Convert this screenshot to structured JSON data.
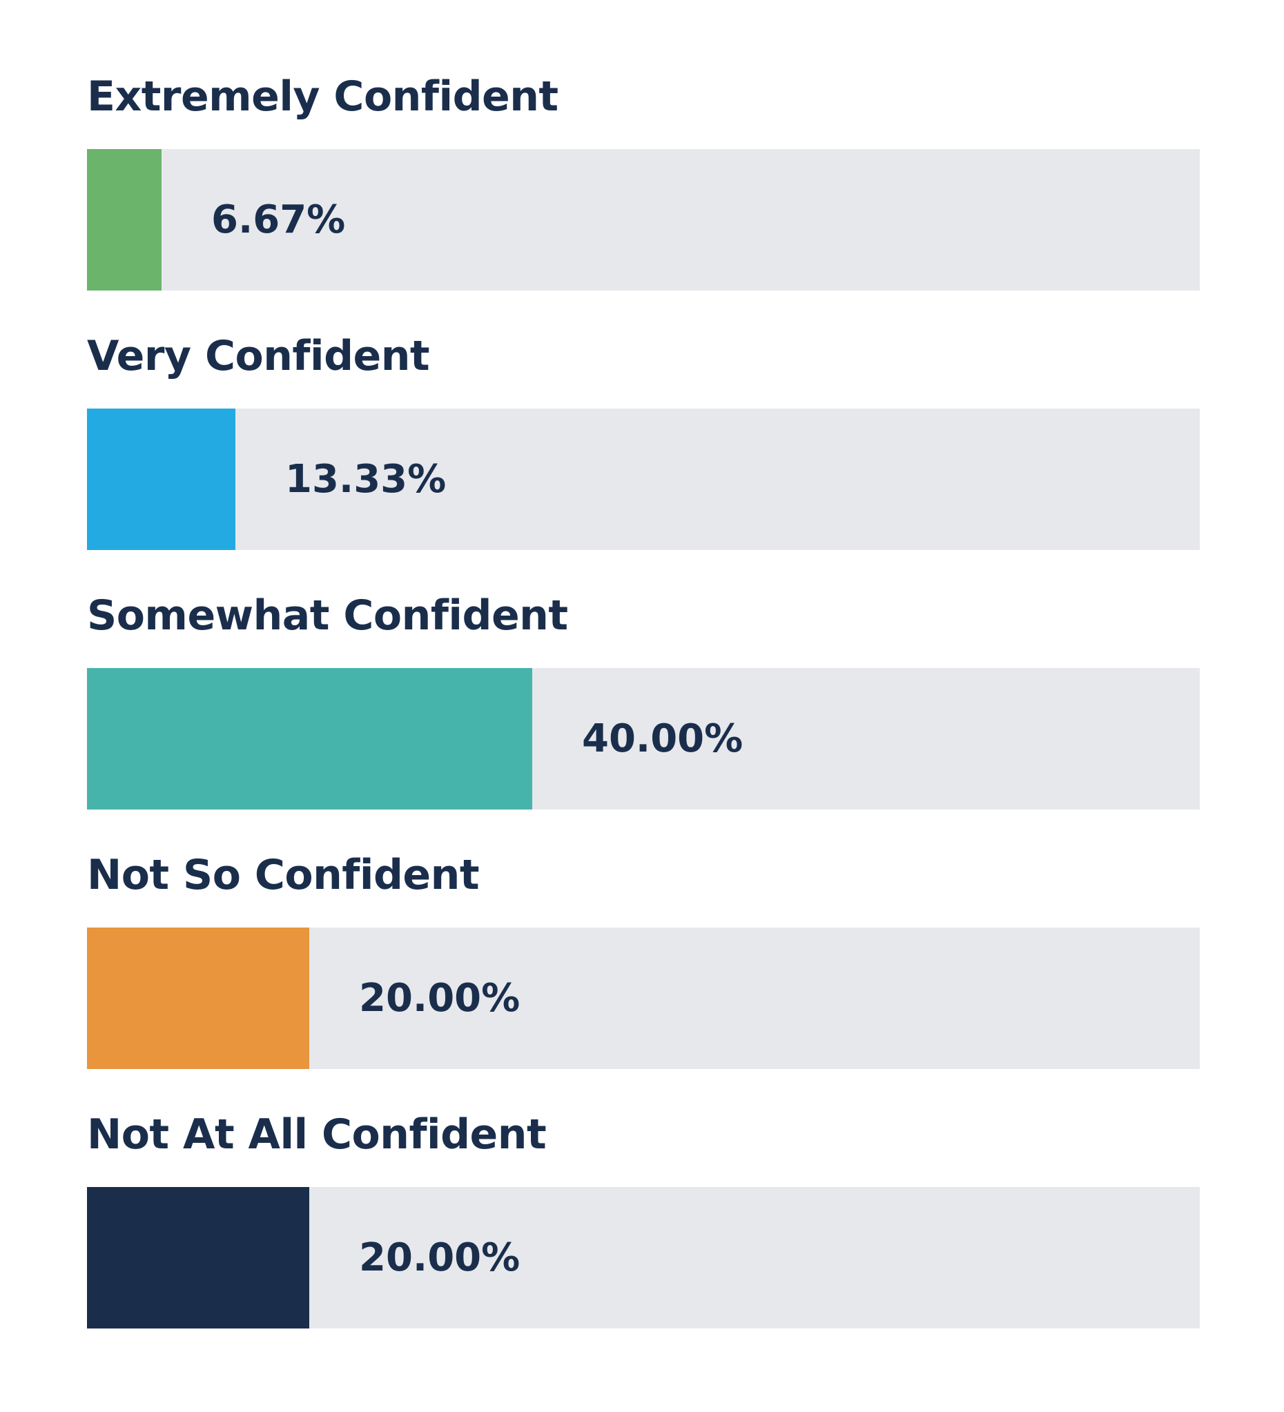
{
  "chart_data": {
    "type": "bar",
    "orientation": "horizontal",
    "title": "",
    "xlabel": "",
    "ylabel": "",
    "xlim": [
      0,
      100
    ],
    "grid": false,
    "categories": [
      "Extremely Confident",
      "Very Confident",
      "Somewhat Confident",
      "Not So Confident",
      "Not At All Confident"
    ],
    "values": [
      6.67,
      13.33,
      40.0,
      20.0,
      20.0
    ],
    "value_labels": [
      "6.67%",
      "13.33%",
      "40.00%",
      "20.00%",
      "20.00%"
    ],
    "colors": [
      "#6bb46b",
      "#23aae2",
      "#47b4ac",
      "#e8953e",
      "#1a2e4c"
    ],
    "track_color": "#e7e8ec",
    "text_color": "#1a2e4c"
  }
}
